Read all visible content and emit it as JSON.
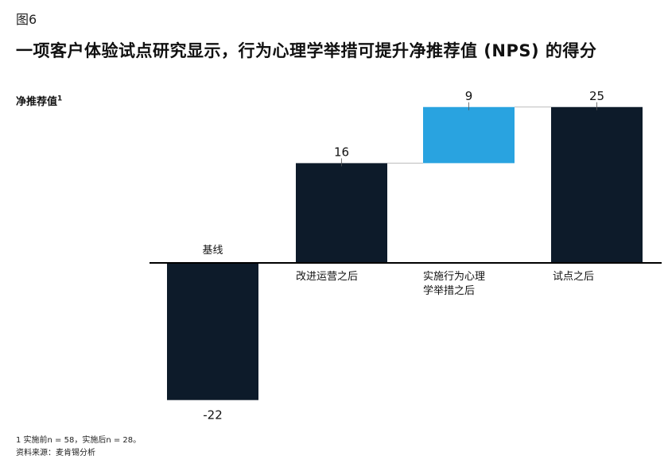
{
  "figure_label": "图6",
  "title": "一项客户体验试点研究显示，行为心理学举措可提升净推荐值 (NPS) 的得分",
  "footnotes": {
    "note1": "1 实施前n = 58，实施后n = 28。",
    "source": "资料来源：麦肯锡分析"
  },
  "colors": {
    "dark": "#0d1b2a",
    "accent": "#29a3e0",
    "connector": "#bbbbbb",
    "axis": "#000000"
  },
  "chart_data": {
    "type": "bar",
    "subtype": "waterfall",
    "title": "一项客户体验试点研究显示，行为心理学举措可提升净推荐值 (NPS) 的得分",
    "ylabel": "净推荐值",
    "ylabel_superscript": "1",
    "categories": [
      "基线",
      "改进运营之后",
      "实施行为心理学举措之后",
      "试点之后"
    ],
    "category_lines": [
      [
        "基线"
      ],
      [
        "改进运营之后"
      ],
      [
        "实施行为心理",
        "学举措之后"
      ],
      [
        "试点之后"
      ]
    ],
    "bars": [
      {
        "category": "基线",
        "start": 0,
        "end": -22,
        "label": "-22",
        "kind": "total"
      },
      {
        "category": "改进运营之后",
        "start": 0,
        "end": 16,
        "label": "16",
        "kind": "total"
      },
      {
        "category": "实施行为心理学举措之后",
        "start": 16,
        "end": 25,
        "label": "9",
        "kind": "increment"
      },
      {
        "category": "试点之后",
        "start": 0,
        "end": 25,
        "label": "25",
        "kind": "total"
      }
    ],
    "values": [
      -22,
      16,
      9,
      25
    ],
    "ylim": [
      -22,
      25
    ],
    "grid": false,
    "legend": "none"
  }
}
